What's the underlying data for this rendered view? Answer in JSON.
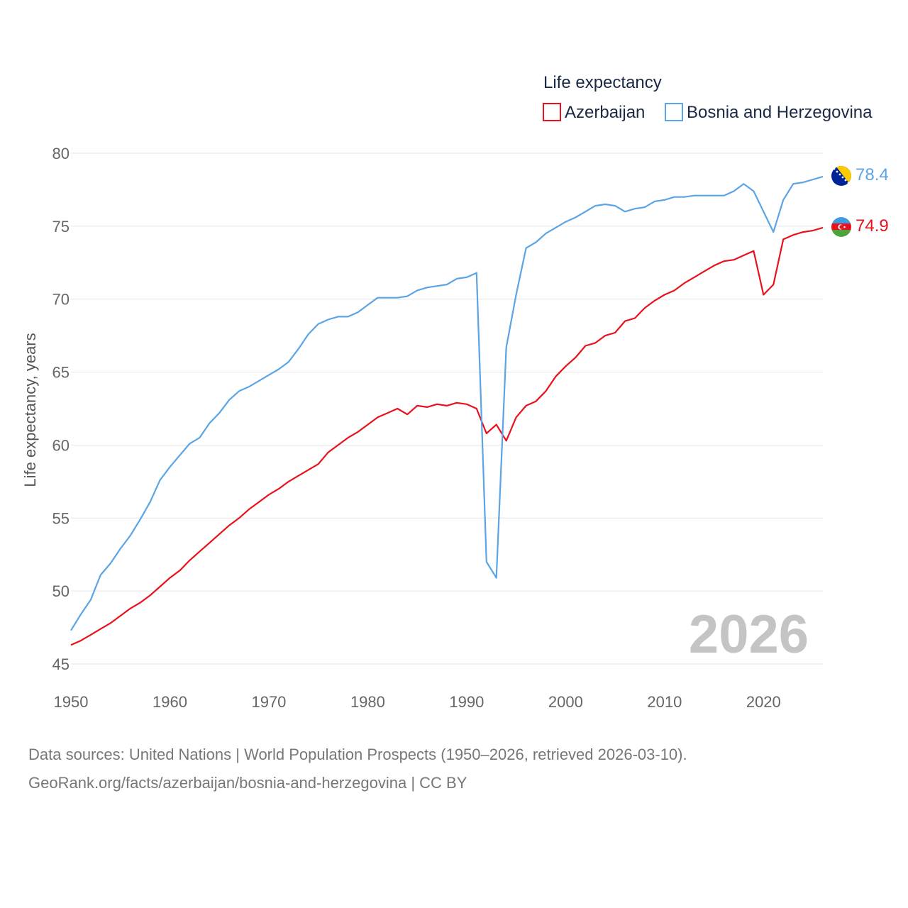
{
  "chart_data": {
    "type": "line",
    "title": "",
    "legend_title": "Life expectancy",
    "legend_position": "top-right",
    "xlabel": "",
    "ylabel": "Life expectancy, years",
    "xlim": [
      1950,
      2026
    ],
    "ylim": [
      45,
      80
    ],
    "x_ticks": [
      1950,
      1960,
      1970,
      1980,
      1990,
      2000,
      2010,
      2020
    ],
    "y_ticks": [
      45,
      50,
      55,
      60,
      65,
      70,
      75,
      80
    ],
    "grid": true,
    "current_year_label": "2026",
    "x": [
      1950,
      1951,
      1952,
      1953,
      1954,
      1955,
      1956,
      1957,
      1958,
      1959,
      1960,
      1961,
      1962,
      1963,
      1964,
      1965,
      1966,
      1967,
      1968,
      1969,
      1970,
      1971,
      1972,
      1973,
      1974,
      1975,
      1976,
      1977,
      1978,
      1979,
      1980,
      1981,
      1982,
      1983,
      1984,
      1985,
      1986,
      1987,
      1988,
      1989,
      1990,
      1991,
      1992,
      1993,
      1994,
      1995,
      1996,
      1997,
      1998,
      1999,
      2000,
      2001,
      2002,
      2003,
      2004,
      2005,
      2006,
      2007,
      2008,
      2009,
      2010,
      2011,
      2012,
      2013,
      2014,
      2015,
      2016,
      2017,
      2018,
      2019,
      2020,
      2021,
      2022,
      2023,
      2024,
      2025,
      2026
    ],
    "series": [
      {
        "name": "Azerbaijan",
        "color": "#e8111c",
        "end_label": "74.9",
        "flag_icon": "azerbaijan-flag-icon",
        "values": [
          46.3,
          46.6,
          47.0,
          47.4,
          47.8,
          48.3,
          48.8,
          49.2,
          49.7,
          50.3,
          50.9,
          51.4,
          52.1,
          52.7,
          53.3,
          53.9,
          54.5,
          55.0,
          55.6,
          56.1,
          56.6,
          57.0,
          57.5,
          57.9,
          58.3,
          58.7,
          59.5,
          60.0,
          60.5,
          60.9,
          61.4,
          61.9,
          62.2,
          62.5,
          62.1,
          62.7,
          62.6,
          62.8,
          62.7,
          62.9,
          62.8,
          62.5,
          60.8,
          61.4,
          60.3,
          61.9,
          62.7,
          63.0,
          63.7,
          64.7,
          65.4,
          66.0,
          66.8,
          67.0,
          67.5,
          67.7,
          68.5,
          68.7,
          69.4,
          69.9,
          70.3,
          70.6,
          71.1,
          71.5,
          71.9,
          72.3,
          72.6,
          72.7,
          73.0,
          73.3,
          70.3,
          71.0,
          74.1,
          74.4,
          74.6,
          74.7,
          74.9
        ]
      },
      {
        "name": "Bosnia and Herzegovina",
        "color": "#5ba4e5",
        "end_label": "78.4",
        "flag_icon": "bosnia-flag-icon",
        "values": [
          47.3,
          48.4,
          49.4,
          51.1,
          51.9,
          52.9,
          53.8,
          54.9,
          56.1,
          57.6,
          58.5,
          59.3,
          60.1,
          60.5,
          61.5,
          62.2,
          63.1,
          63.7,
          64.0,
          64.4,
          64.8,
          65.2,
          65.7,
          66.6,
          67.6,
          68.3,
          68.6,
          68.8,
          68.8,
          69.1,
          69.6,
          70.1,
          70.1,
          70.1,
          70.2,
          70.6,
          70.8,
          70.9,
          71.0,
          71.4,
          71.5,
          71.8,
          52.0,
          50.9,
          66.7,
          70.3,
          73.5,
          73.9,
          74.5,
          74.9,
          75.3,
          75.6,
          76.0,
          76.4,
          76.5,
          76.4,
          76.0,
          76.2,
          76.3,
          76.7,
          76.8,
          77.0,
          77.0,
          77.1,
          77.1,
          77.1,
          77.1,
          77.4,
          77.9,
          77.4,
          76.0,
          74.6,
          76.8,
          77.9,
          78.0,
          78.2,
          78.4
        ]
      }
    ]
  },
  "source": {
    "line1": "Data sources: United Nations | World Population Prospects (1950–2026, retrieved 2026-03-10).",
    "line2": "GeoRank.org/facts/azerbaijan/bosnia-and-herzegovina | CC BY"
  }
}
